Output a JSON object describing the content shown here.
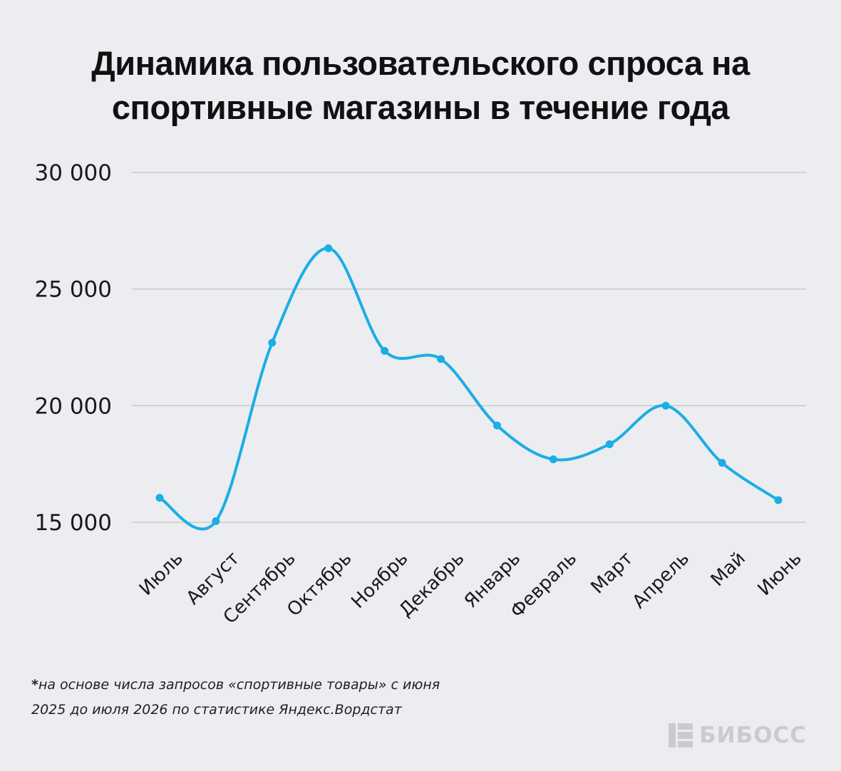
{
  "title": {
    "line1": "Динамика пользовательского спроса на",
    "line2": "спортивные магазины в течение года"
  },
  "colors": {
    "background": "#ecedf1",
    "line": "#1aaee5",
    "grid": "#c4c5ca",
    "text": "#111111"
  },
  "chart_data": {
    "type": "line",
    "title": "Динамика пользовательского спроса на спортивные магазины в течение года",
    "xlabel": "",
    "ylabel": "",
    "ylim": [
      15000,
      30000
    ],
    "yticks": [
      15000,
      20000,
      25000,
      30000
    ],
    "ytick_labels": [
      "15 000",
      "20 000",
      "25 000",
      "30 000"
    ],
    "categories": [
      "Июль",
      "Август",
      "Сентябрь",
      "Октябрь",
      "Ноябрь",
      "Декабрь",
      "Январь",
      "Февраль",
      "Март",
      "Апрель",
      "Май",
      "Июнь"
    ],
    "series": [
      {
        "values": [
          16050,
          15050,
          22700,
          26750,
          22350,
          22000,
          19150,
          17700,
          18350,
          20000,
          17550,
          15950
        ]
      }
    ],
    "grid": true,
    "legend": "none",
    "smooth": true
  },
  "footnote": {
    "star": "*",
    "line1": "на основе числа запросов «спортивные товары» с июня",
    "line2": "2025 до июля 2026 по статистике Яндекс.Вордстат"
  },
  "logo": {
    "text": "БИБОСС",
    "icon": "bibos-logo-icon"
  }
}
